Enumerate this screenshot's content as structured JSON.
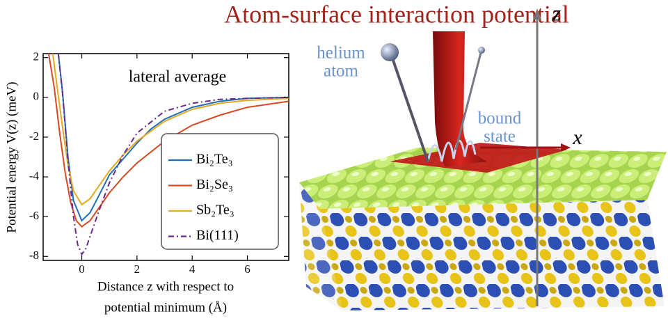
{
  "title": "Atom-surface interaction potential",
  "chart_data": {
    "type": "line",
    "annotation": "lateral average",
    "ylabel": "Potential energy V(z) (meV)",
    "xlabel": [
      "Distance z with respect to",
      "potential minimum (Å)"
    ],
    "xlim": [
      -1.4,
      7.5
    ],
    "ylim": [
      -8.2,
      2.2
    ],
    "xticks": [
      0,
      2,
      4,
      6
    ],
    "yticks": [
      2,
      0,
      -2,
      -4,
      -6,
      -8
    ],
    "legend": "lower right",
    "series": [
      {
        "name": "Bi₂Te₃",
        "color": "#1f6fb8",
        "dash": "solid",
        "x": [
          -0.85,
          -0.7,
          -0.5,
          -0.3,
          0,
          0.3,
          0.6,
          1,
          1.5,
          2,
          2.5,
          3,
          4,
          5,
          6,
          7.5
        ],
        "values": [
          2.2,
          0.3,
          -3.0,
          -5.2,
          -6.2,
          -5.8,
          -5.0,
          -3.9,
          -3.1,
          -2.3,
          -1.6,
          -1.1,
          -0.5,
          -0.2,
          -0.05,
          0
        ]
      },
      {
        "name": "Bi₂Se₃",
        "color": "#d9481f",
        "dash": "solid",
        "x": [
          -1.2,
          -1,
          -0.8,
          -0.6,
          -0.4,
          -0.2,
          0,
          0.3,
          0.6,
          1,
          1.5,
          2,
          3,
          4,
          5,
          6,
          7.5
        ],
        "values": [
          2.2,
          0.5,
          -1.8,
          -3.8,
          -5.3,
          -6.2,
          -6.5,
          -6.2,
          -5.6,
          -4.8,
          -4.0,
          -3.3,
          -2.2,
          -1.4,
          -0.9,
          -0.5,
          -0.2
        ]
      },
      {
        "name": "Sb₂Te₃",
        "color": "#e6a81e",
        "dash": "solid",
        "x": [
          -1.05,
          -0.9,
          -0.7,
          -0.5,
          -0.3,
          0,
          0.3,
          0.6,
          1,
          1.5,
          2,
          3,
          4,
          5,
          6,
          7.5
        ],
        "values": [
          2.2,
          0.6,
          -1.5,
          -3.4,
          -4.7,
          -5.4,
          -5.1,
          -4.5,
          -3.7,
          -2.9,
          -2.2,
          -1.2,
          -0.6,
          -0.3,
          -0.15,
          -0.05
        ]
      },
      {
        "name": "Bi(111)",
        "color": "#6a2a8c",
        "dash": "dashdot",
        "x": [
          -0.85,
          -0.7,
          -0.5,
          -0.3,
          -0.15,
          0,
          0.15,
          0.3,
          0.6,
          1,
          1.5,
          2,
          3,
          4,
          5,
          6,
          7.5
        ],
        "values": [
          2.2,
          0.2,
          -3.2,
          -6.0,
          -7.4,
          -7.9,
          -7.6,
          -7.0,
          -5.8,
          -4.3,
          -2.9,
          -1.8,
          -0.7,
          -0.3,
          -0.1,
          -0.05,
          0
        ]
      }
    ]
  },
  "illustration": {
    "atom_label": [
      "helium",
      "atom"
    ],
    "state_label": [
      "bound",
      "state"
    ],
    "x_axis": "x",
    "z_axis": "z"
  }
}
